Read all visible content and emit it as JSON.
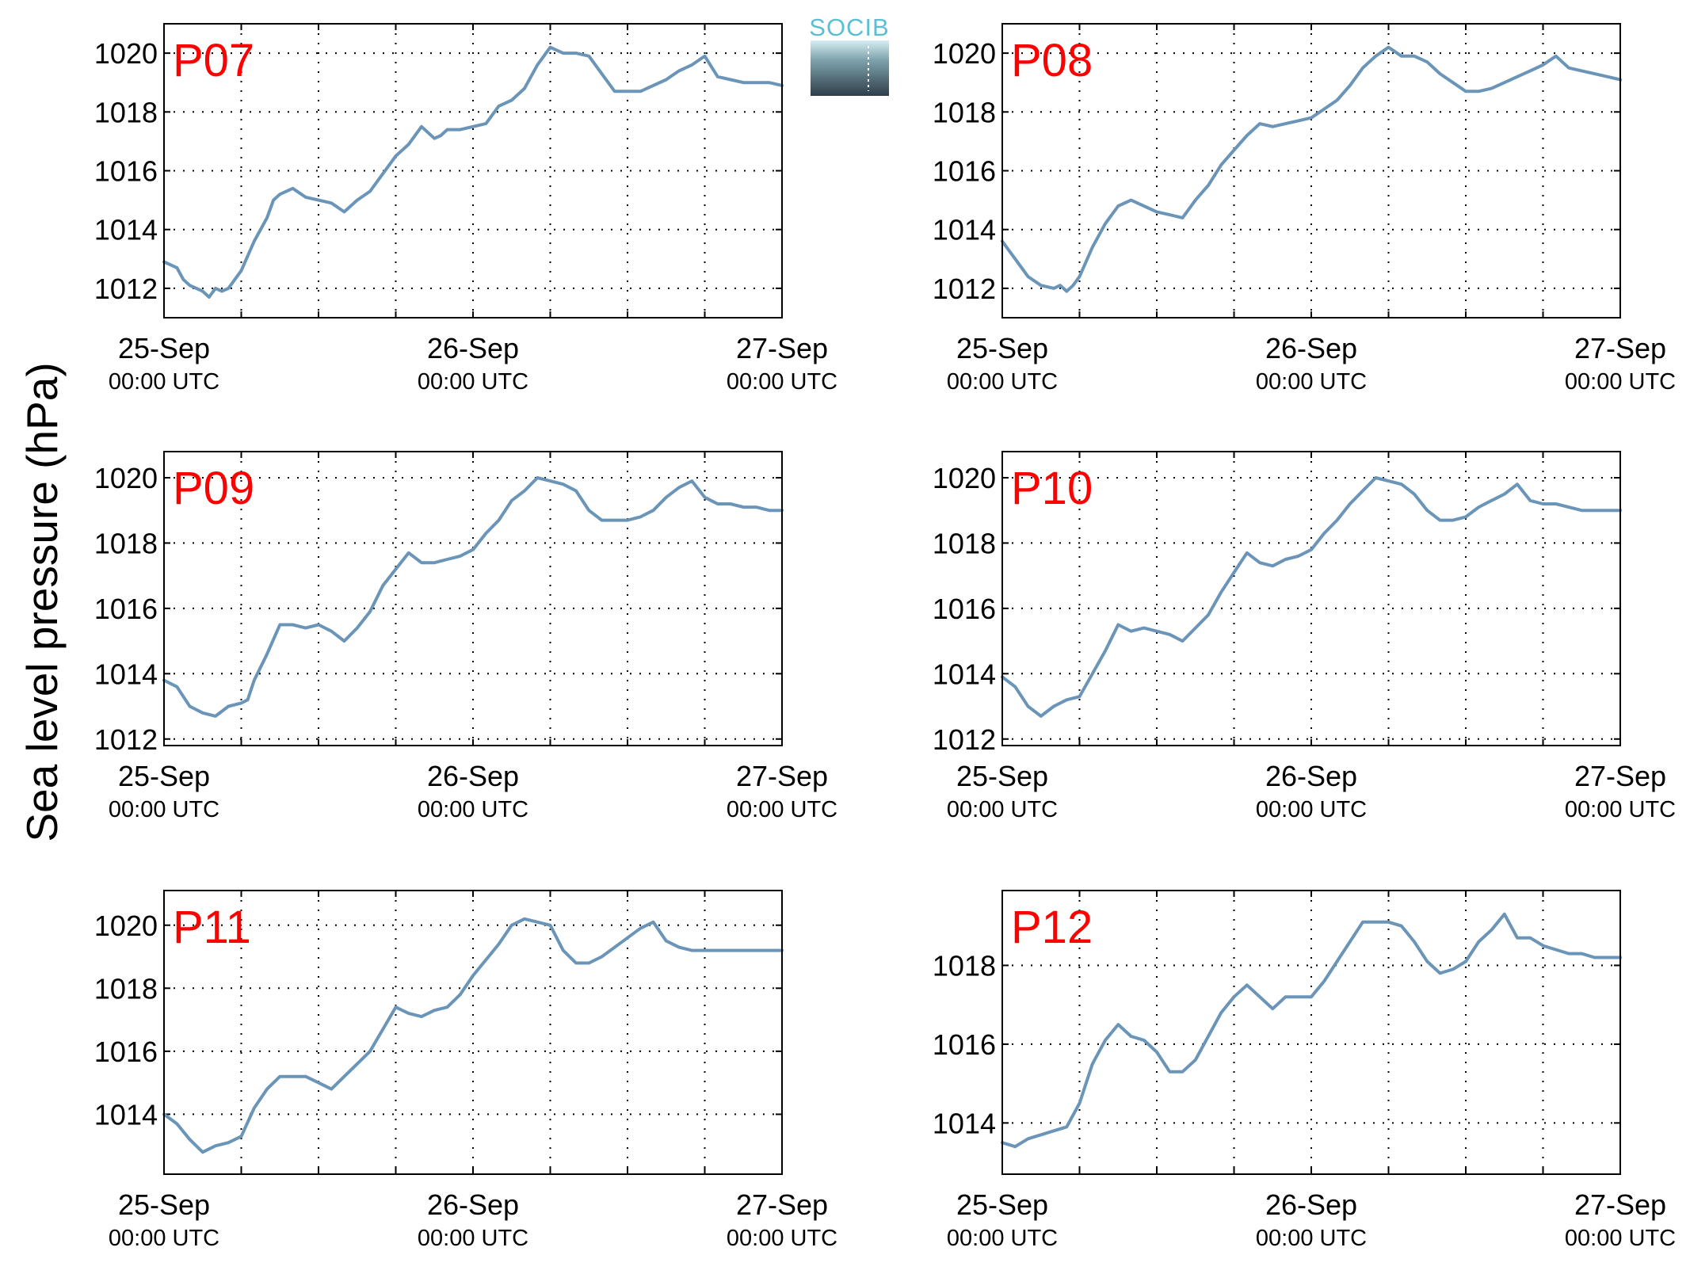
{
  "figure": {
    "ylabel": "Sea level pressure (hPa)",
    "logo_text": "SOCIB",
    "line_color": "#6a95b8",
    "panel_label_color": "#ff0000"
  },
  "chart_data": [
    {
      "type": "line",
      "title": "P07",
      "ylim": [
        1011,
        1021
      ],
      "yticks": [
        1012,
        1014,
        1016,
        1018,
        1020
      ],
      "xlim": [
        0,
        48
      ],
      "xtick_hours": [
        0,
        24,
        48
      ],
      "xtick_labels": [
        [
          "25-Sep",
          "00:00 UTC"
        ],
        [
          "26-Sep",
          "00:00 UTC"
        ],
        [
          "27-Sep",
          "00:00 UTC"
        ]
      ],
      "grid": true,
      "series": [
        {
          "x": [
            0,
            1,
            1.5,
            2,
            3,
            3.5,
            4,
            4.5,
            5,
            6,
            7,
            8,
            8.5,
            9,
            10,
            11,
            12,
            13,
            14,
            15,
            16,
            17,
            18,
            19,
            20,
            21,
            21.5,
            22,
            23,
            24,
            25,
            26,
            27,
            28,
            29,
            30,
            31,
            32,
            33,
            34,
            35,
            36,
            37,
            38,
            39,
            40,
            41,
            42,
            43,
            44,
            45,
            46,
            46.5,
            47,
            48
          ],
          "y": [
            1012.9,
            1012.7,
            1012.3,
            1012.1,
            1011.9,
            1011.7,
            1012.0,
            1011.9,
            1012.0,
            1012.6,
            1013.6,
            1014.4,
            1015.0,
            1015.2,
            1015.4,
            1015.1,
            1015.0,
            1014.9,
            1014.6,
            1015.0,
            1015.3,
            1015.9,
            1016.5,
            1016.9,
            1017.5,
            1017.1,
            1017.2,
            1017.4,
            1017.4,
            1017.5,
            1017.6,
            1018.2,
            1018.4,
            1018.8,
            1019.6,
            1020.2,
            1020.0,
            1020.0,
            1019.9,
            1019.3,
            1018.7,
            1018.7,
            1018.7,
            1018.9,
            1019.1,
            1019.4,
            1019.6,
            1019.9,
            1019.2,
            1019.1,
            1019.0,
            1019.0,
            1019.0,
            1019.0,
            1018.9
          ]
        }
      ]
    },
    {
      "type": "line",
      "title": "P08",
      "ylim": [
        1011,
        1021
      ],
      "yticks": [
        1012,
        1014,
        1016,
        1018,
        1020
      ],
      "xlim": [
        0,
        48
      ],
      "xtick_hours": [
        0,
        24,
        48
      ],
      "xtick_labels": [
        [
          "25-Sep",
          "00:00 UTC"
        ],
        [
          "26-Sep",
          "00:00 UTC"
        ],
        [
          "27-Sep",
          "00:00 UTC"
        ]
      ],
      "grid": true,
      "series": [
        {
          "x": [
            0,
            1,
            2,
            3,
            4,
            4.5,
            5,
            5.5,
            6,
            7,
            8,
            9,
            10,
            11,
            12,
            13,
            14,
            15,
            16,
            17,
            18,
            19,
            20,
            21,
            22,
            23,
            24,
            25,
            26,
            27,
            28,
            29,
            30,
            31,
            32,
            33,
            34,
            35,
            36,
            37,
            38,
            39,
            40,
            41,
            42,
            43,
            44,
            45,
            46,
            47,
            48
          ],
          "y": [
            1013.6,
            1013.0,
            1012.4,
            1012.1,
            1012.0,
            1012.1,
            1011.9,
            1012.1,
            1012.4,
            1013.4,
            1014.2,
            1014.8,
            1015.0,
            1014.8,
            1014.6,
            1014.5,
            1014.4,
            1015.0,
            1015.5,
            1016.2,
            1016.7,
            1017.2,
            1017.6,
            1017.5,
            1017.6,
            1017.7,
            1017.8,
            1018.1,
            1018.4,
            1018.9,
            1019.5,
            1019.9,
            1020.2,
            1019.9,
            1019.9,
            1019.7,
            1019.3,
            1019.0,
            1018.7,
            1018.7,
            1018.8,
            1019.0,
            1019.2,
            1019.4,
            1019.6,
            1019.9,
            1019.5,
            1019.4,
            1019.3,
            1019.2,
            1019.1
          ]
        }
      ]
    },
    {
      "type": "line",
      "title": "P09",
      "ylim": [
        1011.8,
        1020.8
      ],
      "yticks": [
        1012,
        1014,
        1016,
        1018,
        1020
      ],
      "xlim": [
        0,
        48
      ],
      "xtick_hours": [
        0,
        24,
        48
      ],
      "xtick_labels": [
        [
          "25-Sep",
          "00:00 UTC"
        ],
        [
          "26-Sep",
          "00:00 UTC"
        ],
        [
          "27-Sep",
          "00:00 UTC"
        ]
      ],
      "grid": true,
      "series": [
        {
          "x": [
            0,
            1,
            2,
            3,
            4,
            5,
            6,
            6.5,
            7,
            8,
            9,
            10,
            11,
            12,
            13,
            14,
            15,
            16,
            17,
            18,
            19,
            20,
            21,
            22,
            23,
            24,
            25,
            26,
            27,
            28,
            29,
            30,
            31,
            32,
            33,
            34,
            35,
            36,
            37,
            38,
            39,
            40,
            41,
            42,
            43,
            44,
            45,
            46,
            47,
            48
          ],
          "y": [
            1013.8,
            1013.6,
            1013.0,
            1012.8,
            1012.7,
            1013.0,
            1013.1,
            1013.2,
            1013.8,
            1014.6,
            1015.5,
            1015.5,
            1015.4,
            1015.5,
            1015.3,
            1015.0,
            1015.4,
            1015.9,
            1016.7,
            1017.2,
            1017.7,
            1017.4,
            1017.4,
            1017.5,
            1017.6,
            1017.8,
            1018.3,
            1018.7,
            1019.3,
            1019.6,
            1020.0,
            1019.9,
            1019.8,
            1019.6,
            1019.0,
            1018.7,
            1018.7,
            1018.7,
            1018.8,
            1019.0,
            1019.4,
            1019.7,
            1019.9,
            1019.4,
            1019.2,
            1019.2,
            1019.1,
            1019.1,
            1019.0,
            1019.0
          ]
        }
      ]
    },
    {
      "type": "line",
      "title": "P10",
      "ylim": [
        1011.8,
        1020.8
      ],
      "yticks": [
        1012,
        1014,
        1016,
        1018,
        1020
      ],
      "xlim": [
        0,
        48
      ],
      "xtick_hours": [
        0,
        24,
        48
      ],
      "xtick_labels": [
        [
          "25-Sep",
          "00:00 UTC"
        ],
        [
          "26-Sep",
          "00:00 UTC"
        ],
        [
          "27-Sep",
          "00:00 UTC"
        ]
      ],
      "grid": true,
      "series": [
        {
          "x": [
            0,
            1,
            2,
            3,
            4,
            5,
            6,
            7,
            8,
            9,
            10,
            11,
            12,
            13,
            14,
            15,
            16,
            17,
            18,
            19,
            20,
            21,
            22,
            23,
            24,
            25,
            26,
            27,
            28,
            29,
            30,
            31,
            32,
            33,
            34,
            35,
            36,
            37,
            38,
            39,
            40,
            41,
            42,
            43,
            44,
            45,
            46,
            47,
            48
          ],
          "y": [
            1013.9,
            1013.6,
            1013.0,
            1012.7,
            1013.0,
            1013.2,
            1013.3,
            1014.0,
            1014.7,
            1015.5,
            1015.3,
            1015.4,
            1015.3,
            1015.2,
            1015.0,
            1015.4,
            1015.8,
            1016.5,
            1017.1,
            1017.7,
            1017.4,
            1017.3,
            1017.5,
            1017.6,
            1017.8,
            1018.3,
            1018.7,
            1019.2,
            1019.6,
            1020.0,
            1019.9,
            1019.8,
            1019.5,
            1019.0,
            1018.7,
            1018.7,
            1018.8,
            1019.1,
            1019.3,
            1019.5,
            1019.8,
            1019.3,
            1019.2,
            1019.2,
            1019.1,
            1019.0,
            1019.0,
            1019.0,
            1019.0
          ]
        }
      ]
    },
    {
      "type": "line",
      "title": "P11",
      "ylim": [
        1012.1,
        1021.1
      ],
      "yticks": [
        1014,
        1016,
        1018,
        1020
      ],
      "xlim": [
        0,
        48
      ],
      "xtick_hours": [
        0,
        24,
        48
      ],
      "xtick_labels": [
        [
          "25-Sep",
          "00:00 UTC"
        ],
        [
          "26-Sep",
          "00:00 UTC"
        ],
        [
          "27-Sep",
          "00:00 UTC"
        ]
      ],
      "grid": true,
      "series": [
        {
          "x": [
            0,
            1,
            2,
            3,
            4,
            5,
            6,
            7,
            8,
            9,
            10,
            11,
            12,
            13,
            14,
            15,
            16,
            17,
            18,
            19,
            20,
            21,
            22,
            23,
            24,
            25,
            26,
            27,
            28,
            29,
            30,
            31,
            32,
            33,
            34,
            35,
            36,
            37,
            38,
            39,
            40,
            41,
            42,
            43,
            44,
            45,
            46,
            47,
            48
          ],
          "y": [
            1014.0,
            1013.7,
            1013.2,
            1012.8,
            1013.0,
            1013.1,
            1013.3,
            1014.2,
            1014.8,
            1015.2,
            1015.2,
            1015.2,
            1015.0,
            1014.8,
            1015.2,
            1015.6,
            1016.0,
            1016.7,
            1017.4,
            1017.2,
            1017.1,
            1017.3,
            1017.4,
            1017.8,
            1018.4,
            1018.9,
            1019.4,
            1020.0,
            1020.2,
            1020.1,
            1020.0,
            1019.2,
            1018.8,
            1018.8,
            1019.0,
            1019.3,
            1019.6,
            1019.9,
            1020.1,
            1019.5,
            1019.3,
            1019.2,
            1019.2,
            1019.2,
            1019.2,
            1019.2,
            1019.2,
            1019.2,
            1019.2
          ]
        }
      ]
    },
    {
      "type": "line",
      "title": "P12",
      "ylim": [
        1012.7,
        1019.9
      ],
      "yticks": [
        1014,
        1016,
        1018
      ],
      "xlim": [
        0,
        48
      ],
      "xtick_hours": [
        0,
        24,
        48
      ],
      "xtick_labels": [
        [
          "25-Sep",
          "00:00 UTC"
        ],
        [
          "26-Sep",
          "00:00 UTC"
        ],
        [
          "27-Sep",
          "00:00 UTC"
        ]
      ],
      "grid": true,
      "series": [
        {
          "x": [
            0,
            1,
            2,
            3,
            4,
            5,
            6,
            7,
            8,
            9,
            10,
            11,
            12,
            13,
            14,
            15,
            16,
            17,
            18,
            19,
            20,
            21,
            22,
            23,
            24,
            25,
            26,
            27,
            28,
            29,
            30,
            31,
            32,
            33,
            34,
            35,
            36,
            37,
            38,
            39,
            40,
            41,
            42,
            43,
            44,
            45,
            46,
            47,
            48
          ],
          "y": [
            1013.5,
            1013.4,
            1013.6,
            1013.7,
            1013.8,
            1013.9,
            1014.5,
            1015.5,
            1016.1,
            1016.5,
            1016.2,
            1016.1,
            1015.8,
            1015.3,
            1015.3,
            1015.6,
            1016.2,
            1016.8,
            1017.2,
            1017.5,
            1017.2,
            1016.9,
            1017.2,
            1017.2,
            1017.2,
            1017.6,
            1018.1,
            1018.6,
            1019.1,
            1019.1,
            1019.1,
            1019.0,
            1018.6,
            1018.1,
            1017.8,
            1017.9,
            1018.1,
            1018.6,
            1018.9,
            1019.3,
            1018.7,
            1018.7,
            1018.5,
            1018.4,
            1018.3,
            1018.3,
            1018.2,
            1018.2,
            1018.2
          ]
        }
      ]
    }
  ]
}
